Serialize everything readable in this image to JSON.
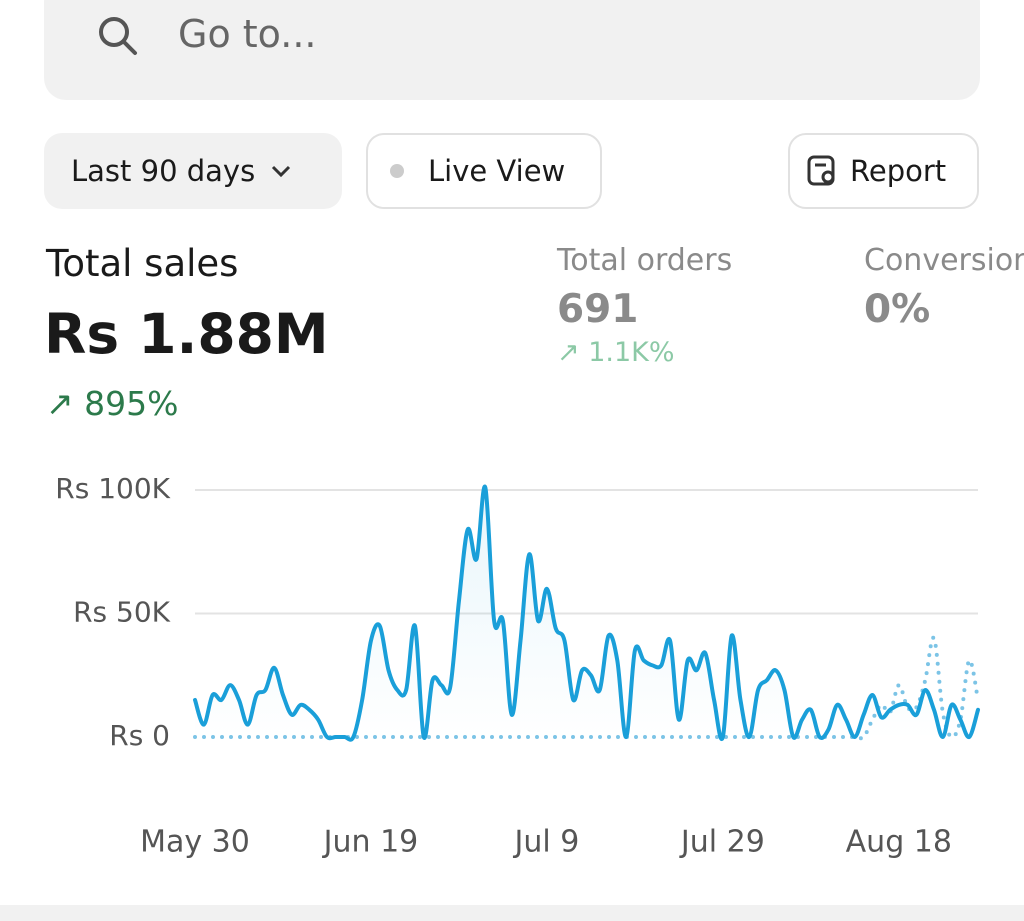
{
  "search": {
    "placeholder": "Go to..."
  },
  "toolbar": {
    "range": "Last 90 days",
    "live": "Live View",
    "report": "Report"
  },
  "metrics": [
    {
      "label": "Total sales",
      "value": "Rs 1.88M",
      "change": "895%"
    },
    {
      "label": "Total orders",
      "value": "691",
      "change": "1.1K%"
    },
    {
      "label": "Conversion",
      "value": "0%"
    }
  ],
  "chart_data": {
    "type": "line",
    "categories": [
      "May 30",
      null,
      null,
      null,
      null,
      null,
      null,
      null,
      null,
      null,
      null,
      null,
      null,
      null,
      null,
      null,
      null,
      null,
      null,
      null,
      "Jun 19",
      null,
      null,
      null,
      null,
      null,
      null,
      null,
      null,
      null,
      null,
      null,
      null,
      null,
      null,
      null,
      null,
      null,
      null,
      null,
      "Jul 9",
      null,
      null,
      null,
      null,
      null,
      null,
      null,
      null,
      null,
      null,
      null,
      null,
      null,
      null,
      null,
      null,
      null,
      null,
      null,
      "Jul 29",
      null,
      null,
      null,
      null,
      null,
      null,
      null,
      null,
      null,
      null,
      null,
      null,
      null,
      null,
      null,
      null,
      null,
      null,
      null,
      "Aug 18",
      null,
      null,
      null,
      null,
      null,
      null,
      null,
      null,
      null
    ],
    "series": [
      {
        "color": "#1a9fd9",
        "values": [
          15000,
          5000,
          17000,
          15000,
          21000,
          15000,
          5000,
          17000,
          19000,
          28000,
          17000,
          9000,
          13000,
          11000,
          7000,
          0,
          0,
          0,
          0,
          15000,
          39000,
          45000,
          27000,
          19000,
          19000,
          45000,
          0,
          23000,
          21000,
          20000,
          55000,
          84000,
          72000,
          101000,
          47000,
          47000,
          9000,
          39000,
          74000,
          47000,
          60000,
          44000,
          39000,
          15000,
          27000,
          25000,
          19000,
          41000,
          31000,
          0,
          35000,
          31000,
          29000,
          29000,
          39000,
          7000,
          31000,
          27000,
          34000,
          15000,
          0,
          41000,
          15000,
          0,
          19000,
          23000,
          27000,
          19000,
          0,
          7000,
          11000,
          0,
          3000,
          13000,
          7000,
          0,
          9000,
          17000,
          8000,
          11000,
          13000,
          13000,
          9000,
          19000,
          11000,
          0,
          13000,
          7000,
          0,
          11000
        ]
      },
      {
        "color": "#7cc4e6",
        "values": [
          0,
          0,
          0,
          0,
          0,
          0,
          0,
          0,
          0,
          0,
          0,
          0,
          0,
          0,
          0,
          0,
          0,
          0,
          0,
          0,
          0,
          0,
          0,
          0,
          0,
          0,
          0,
          0,
          0,
          0,
          0,
          0,
          0,
          0,
          0,
          0,
          0,
          0,
          0,
          0,
          0,
          0,
          0,
          0,
          0,
          0,
          0,
          0,
          0,
          0,
          0,
          0,
          0,
          0,
          0,
          0,
          0,
          0,
          0,
          0,
          0,
          0,
          0,
          0,
          0,
          0,
          0,
          0,
          0,
          0,
          0,
          0,
          0,
          0,
          0,
          0,
          0,
          7000,
          13000,
          10000,
          21000,
          12000,
          12000,
          23000,
          40000,
          10000,
          0,
          7000,
          31000,
          15000
        ]
      }
    ],
    "ylim": [
      0,
      100000
    ],
    "yticks": [
      {
        "value": 0,
        "label": "Rs 0"
      },
      {
        "value": 50000,
        "label": "Rs 50K"
      },
      {
        "value": 100000,
        "label": "Rs 100K"
      }
    ],
    "grid": true
  }
}
